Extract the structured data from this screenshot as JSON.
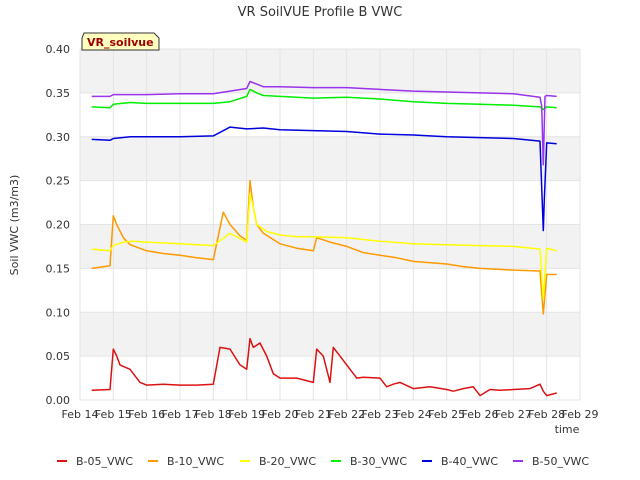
{
  "chart_data": {
    "type": "line",
    "title": "VR SoilVUE Profile B VWC",
    "xlabel": "time",
    "ylabel": "Soil VWC (m3/m3)",
    "badge": "VR_soilvue",
    "ylim": [
      0.0,
      0.4
    ],
    "yticks": [
      "0.00",
      "0.05",
      "0.10",
      "0.15",
      "0.20",
      "0.25",
      "0.30",
      "0.35",
      "0.40"
    ],
    "xlim": [
      "Feb 14",
      "Feb 29"
    ],
    "xticks": [
      "Feb 14",
      "Feb 15",
      "Feb 16",
      "Feb 17",
      "Feb 18",
      "Feb 19",
      "Feb 20",
      "Feb 21",
      "Feb 22",
      "Feb 23",
      "Feb 24",
      "Feb 25",
      "Feb 26",
      "Feb 27",
      "Feb 28",
      "Feb 29"
    ],
    "grid": true,
    "legend_position": "bottom",
    "series": [
      {
        "name": "B-05_VWC",
        "color": "#dd1111",
        "x": [
          14.35,
          14.9,
          15.0,
          15.1,
          15.2,
          15.5,
          15.8,
          16.0,
          16.5,
          17.0,
          17.5,
          18.0,
          18.2,
          18.5,
          18.8,
          19.0,
          19.1,
          19.2,
          19.4,
          19.6,
          19.8,
          20.0,
          20.5,
          21.0,
          21.1,
          21.3,
          21.5,
          21.6,
          21.8,
          22.0,
          22.3,
          22.5,
          23.0,
          23.2,
          23.4,
          23.6,
          24.0,
          24.5,
          25.0,
          25.2,
          25.5,
          25.8,
          26.0,
          26.3,
          26.6,
          27.0,
          27.5,
          27.8,
          27.9,
          28.0,
          28.3
        ],
        "y": [
          0.011,
          0.012,
          0.058,
          0.05,
          0.04,
          0.035,
          0.02,
          0.017,
          0.018,
          0.017,
          0.017,
          0.018,
          0.06,
          0.058,
          0.04,
          0.035,
          0.07,
          0.06,
          0.065,
          0.05,
          0.03,
          0.025,
          0.025,
          0.02,
          0.058,
          0.05,
          0.02,
          0.06,
          0.05,
          0.04,
          0.025,
          0.026,
          0.025,
          0.015,
          0.018,
          0.02,
          0.013,
          0.015,
          0.012,
          0.01,
          0.013,
          0.015,
          0.005,
          0.012,
          0.011,
          0.012,
          0.013,
          0.018,
          0.01,
          0.005,
          0.008
        ]
      },
      {
        "name": "B-10_VWC",
        "color": "#ff9900",
        "x": [
          14.35,
          14.9,
          15.0,
          15.1,
          15.3,
          15.5,
          16.0,
          16.5,
          17.0,
          17.5,
          18.0,
          18.3,
          18.5,
          18.8,
          19.0,
          19.1,
          19.2,
          19.3,
          19.5,
          20.0,
          20.5,
          21.0,
          21.1,
          21.5,
          22.0,
          22.5,
          23.0,
          23.5,
          24.0,
          25.0,
          25.5,
          26.0,
          27.0,
          27.8,
          27.9,
          28.0,
          28.3
        ],
        "y": [
          0.15,
          0.153,
          0.21,
          0.2,
          0.185,
          0.177,
          0.17,
          0.167,
          0.165,
          0.162,
          0.16,
          0.214,
          0.2,
          0.187,
          0.182,
          0.25,
          0.22,
          0.2,
          0.19,
          0.178,
          0.173,
          0.17,
          0.185,
          0.18,
          0.175,
          0.168,
          0.165,
          0.162,
          0.158,
          0.155,
          0.152,
          0.15,
          0.148,
          0.147,
          0.098,
          0.143,
          0.143
        ]
      },
      {
        "name": "B-20_VWC",
        "color": "#ffff00",
        "x": [
          14.35,
          14.9,
          15.0,
          15.3,
          15.6,
          16.0,
          17.0,
          18.0,
          18.5,
          19.0,
          19.1,
          19.2,
          19.3,
          19.6,
          20.0,
          20.5,
          21.0,
          22.0,
          23.0,
          24.0,
          25.0,
          26.0,
          27.0,
          27.8,
          27.9,
          28.0,
          28.3
        ],
        "y": [
          0.172,
          0.17,
          0.176,
          0.18,
          0.181,
          0.18,
          0.178,
          0.176,
          0.19,
          0.18,
          0.235,
          0.22,
          0.2,
          0.192,
          0.188,
          0.186,
          0.186,
          0.185,
          0.181,
          0.178,
          0.177,
          0.176,
          0.175,
          0.172,
          0.115,
          0.173,
          0.17
        ]
      },
      {
        "name": "B-30_VWC",
        "color": "#00ee00",
        "x": [
          14.35,
          14.9,
          15.0,
          15.5,
          16.0,
          17.0,
          18.0,
          18.5,
          19.0,
          19.1,
          19.3,
          19.5,
          20.0,
          21.0,
          22.0,
          23.0,
          24.0,
          25.0,
          26.0,
          27.0,
          27.8,
          27.9,
          28.0,
          28.3
        ],
        "y": [
          0.334,
          0.333,
          0.337,
          0.339,
          0.338,
          0.338,
          0.338,
          0.34,
          0.346,
          0.354,
          0.35,
          0.347,
          0.346,
          0.344,
          0.345,
          0.343,
          0.34,
          0.338,
          0.337,
          0.336,
          0.334,
          0.331,
          0.334,
          0.333
        ]
      },
      {
        "name": "B-40_VWC",
        "color": "#0000dd",
        "x": [
          14.35,
          14.9,
          15.0,
          15.5,
          16.0,
          17.0,
          18.0,
          18.5,
          19.0,
          19.5,
          20.0,
          21.0,
          22.0,
          23.0,
          24.0,
          25.0,
          26.0,
          27.0,
          27.8,
          27.9,
          27.93,
          28.0,
          28.3
        ],
        "y": [
          0.297,
          0.296,
          0.298,
          0.3,
          0.3,
          0.3,
          0.301,
          0.311,
          0.309,
          0.31,
          0.308,
          0.307,
          0.306,
          0.303,
          0.302,
          0.3,
          0.299,
          0.298,
          0.295,
          0.193,
          0.228,
          0.293,
          0.292
        ]
      },
      {
        "name": "B-50_VWC",
        "color": "#9933ee",
        "x": [
          14.35,
          14.9,
          15.0,
          15.5,
          16.0,
          17.0,
          18.0,
          18.5,
          19.0,
          19.1,
          19.3,
          19.5,
          20.0,
          21.0,
          22.0,
          23.0,
          24.0,
          25.0,
          26.0,
          27.0,
          27.8,
          27.85,
          27.9,
          27.95,
          28.0,
          28.3
        ],
        "y": [
          0.346,
          0.346,
          0.348,
          0.348,
          0.348,
          0.349,
          0.349,
          0.352,
          0.355,
          0.363,
          0.36,
          0.357,
          0.357,
          0.356,
          0.356,
          0.354,
          0.352,
          0.351,
          0.35,
          0.349,
          0.345,
          0.335,
          0.268,
          0.346,
          0.347,
          0.346
        ]
      }
    ]
  }
}
